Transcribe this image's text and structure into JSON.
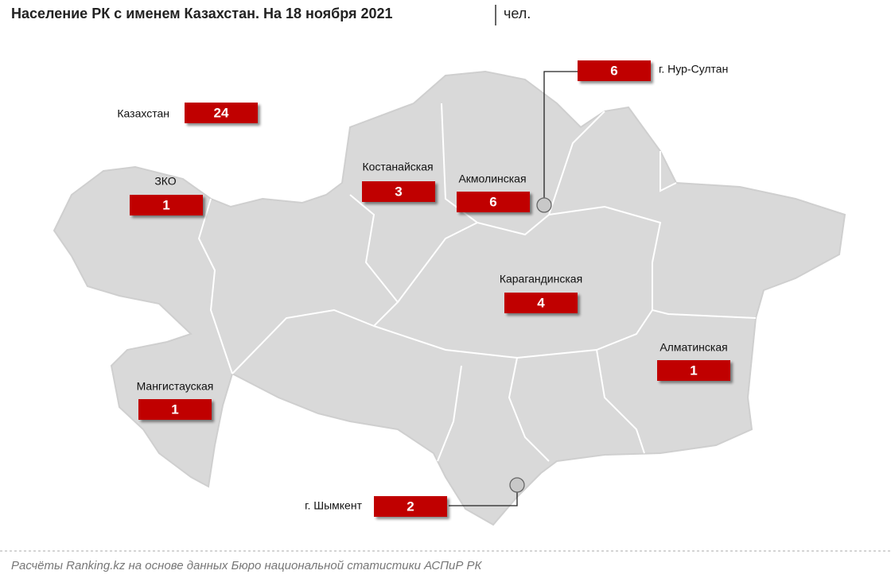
{
  "header": {
    "title": "Население РК с именем Казахстан. На 18 ноября 2021",
    "unit": "чел."
  },
  "regions": [
    {
      "label": "Казахстан",
      "value": 24
    },
    {
      "label": "ЗКО",
      "value": 1
    },
    {
      "label": "Костанайская",
      "value": 3
    },
    {
      "label": "Акмолинская",
      "value": 6
    },
    {
      "label": "г. Нур-Султан",
      "value": 6
    },
    {
      "label": "Карагандинская",
      "value": 4
    },
    {
      "label": "Алматинская",
      "value": 1
    },
    {
      "label": "Мангистауская",
      "value": 1
    },
    {
      "label": "г. Шымкент",
      "value": 2
    }
  ],
  "footer": {
    "source": "Расчёты Ranking.kz на основе данных Бюро национальной статистики АСПиР РК"
  }
}
